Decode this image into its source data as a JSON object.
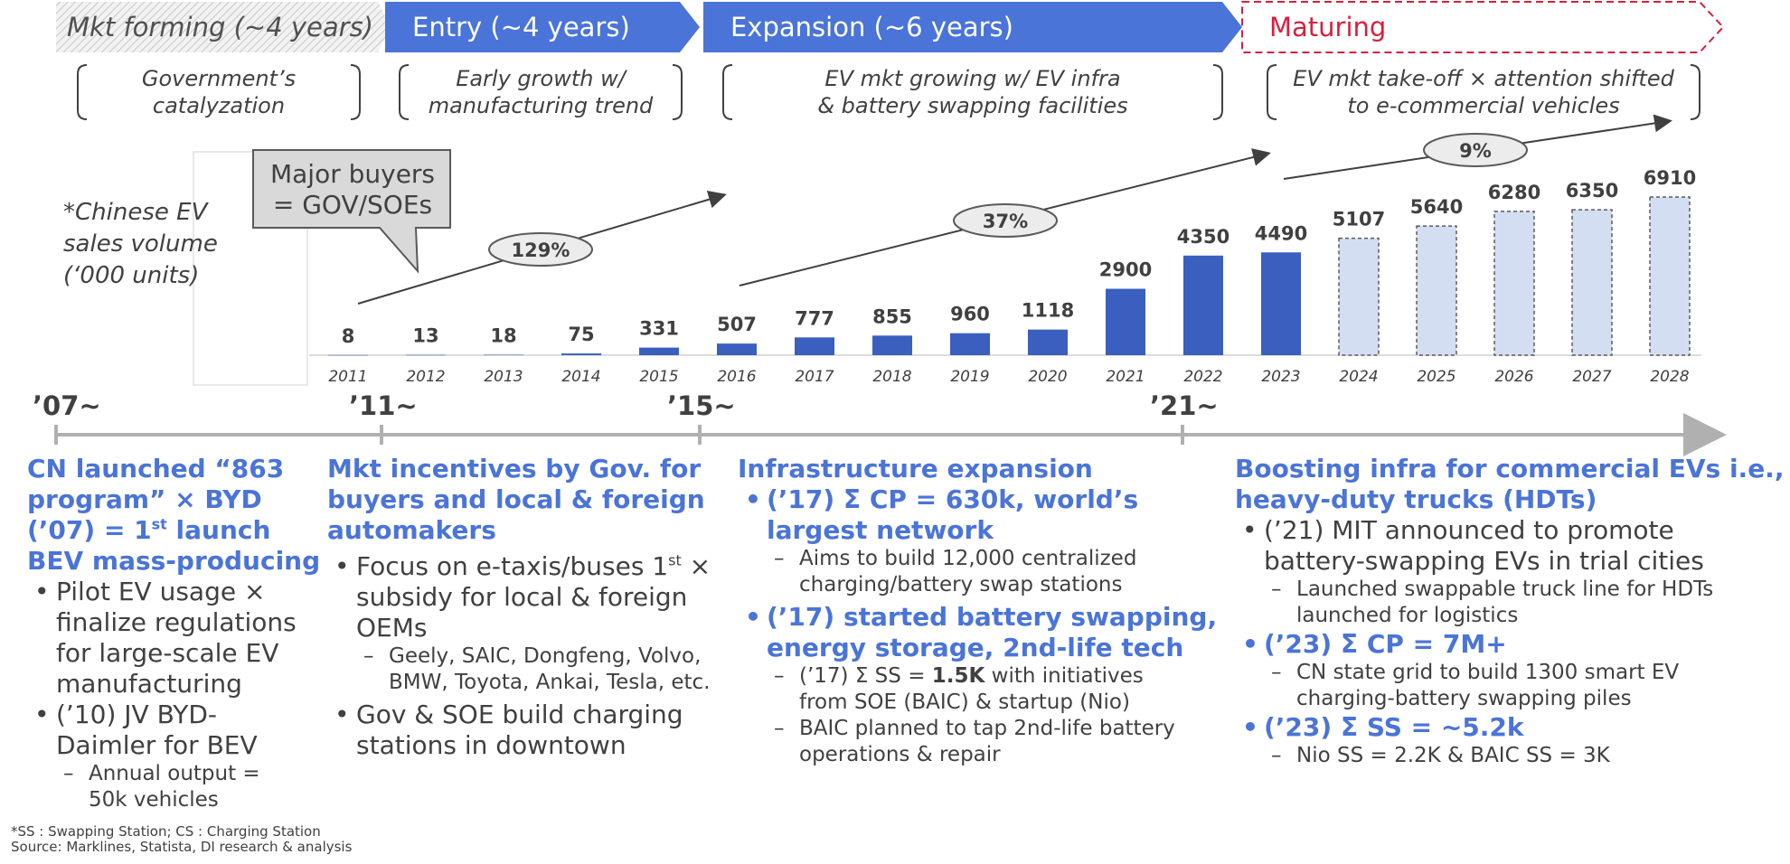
{
  "phases": [
    {
      "label": "Mkt forming (~4 years)",
      "note_lines": [
        "Government’s",
        "catalyzation"
      ]
    },
    {
      "label": "Entry (~4 years)",
      "note_lines": [
        "Early growth w/",
        "manufacturing trend"
      ]
    },
    {
      "label": "Expansion (~6 years)",
      "note_lines": [
        "EV mkt growing w/ EV infra",
        "& battery swapping facilities"
      ]
    },
    {
      "label": "Maturing",
      "note_lines": [
        "EV mkt take-off × attention shifted",
        "to e-commercial vehicles"
      ]
    }
  ],
  "colors": {
    "actual": "#3a5fbf",
    "forecast": "#d3def2",
    "forecast_border": "#5b5b5b",
    "phase_fill": "#4a74d8",
    "maturing": "#d4213d",
    "accent_text": "#4a74d8"
  },
  "sales_label": [
    "*Chinese EV",
    "sales volume",
    "(‘000 units)"
  ],
  "callout": [
    "Major buyers",
    "= GOV/SOEs"
  ],
  "chart_data": {
    "type": "bar",
    "categories": [
      "2011",
      "2012",
      "2013",
      "2014",
      "2015",
      "2016",
      "2017",
      "2018",
      "2019",
      "2020",
      "2021",
      "2022",
      "2023",
      "2024",
      "2025",
      "2026",
      "2027",
      "2028"
    ],
    "values": [
      8,
      13,
      18,
      75,
      331,
      507,
      777,
      855,
      960,
      1118,
      2900,
      4350,
      4490,
      5107,
      5640,
      6280,
      6350,
      6910
    ],
    "forecast_from": "2024",
    "ylim": [
      0,
      7500
    ],
    "growth_labels": [
      "129%",
      "37%",
      "9%"
    ]
  },
  "timeline": {
    "milestones": [
      "’07~",
      "’11~",
      "’15~",
      "’21~"
    ]
  },
  "columns": [
    {
      "header": [
        "CN launched “863",
        "program” × BYD"
      ],
      "header_sup": {
        "pre": "(’07) = 1",
        "sup": "st",
        "post": " launch"
      },
      "header_last": "BEV mass-producing",
      "bullets": [
        {
          "text": "Pilot EV usage × finalize regulations for large-scale EV manufacturing",
          "subs": []
        },
        {
          "text": "(’10) JV BYD-Daimler for BEV",
          "subs": [
            "Annual output = 50k vehicles"
          ]
        }
      ]
    },
    {
      "header": [
        "Mkt incentives by Gov. for",
        "buyers and local & foreign",
        "automakers"
      ],
      "bullet1": {
        "pre": "Focus on e-taxis/buses 1",
        "sup": "st",
        "post": " × subsidy for local & foreign OEMs"
      },
      "bullet1_sub": "Geely, SAIC, Dongfeng, Volvo, BMW, Toyota, Ankai, Tesla, etc.",
      "bullet2": "Gov & SOE build charging stations in downtown"
    },
    {
      "header": [
        "Infrastructure expansion"
      ],
      "b1": "(’17) Σ CP = 630k, world’s largest network",
      "b1_sub": "Aims to build 12,000 centralized charging/battery swap stations",
      "b2": "(’17) started battery swapping, energy storage, 2nd-life tech",
      "b2_sub1_pre": "(’17) Σ SS = ",
      "b2_sub1_bold": "1.5K",
      "b2_sub1_post": " with initiatives from SOE (BAIC) & startup (Nio)",
      "b2_sub2": "BAIC planned to tap 2nd-life battery operations & repair"
    },
    {
      "header": [
        "Boosting infra for commercial EVs i.e.,",
        "heavy-duty trucks (HDTs)"
      ],
      "b1": "(’21) MIT announced to promote battery-swapping EVs in trial cities",
      "b1_sub": "Launched swappable truck line for HDTs launched for logistics",
      "b2": "(’23) Σ CP = 7M+",
      "b2_sub": "CN state grid to build 1300 smart EV charging-battery swapping piles",
      "b3": "(’23) Σ SS = ~5.2k",
      "b3_sub": "Nio SS = 2.2K & BAIC SS = 3K"
    }
  ],
  "footer": [
    "*SS : Swapping Station; CS : Charging Station",
    "Source: Marklines, Statista, DI research & analysis"
  ]
}
